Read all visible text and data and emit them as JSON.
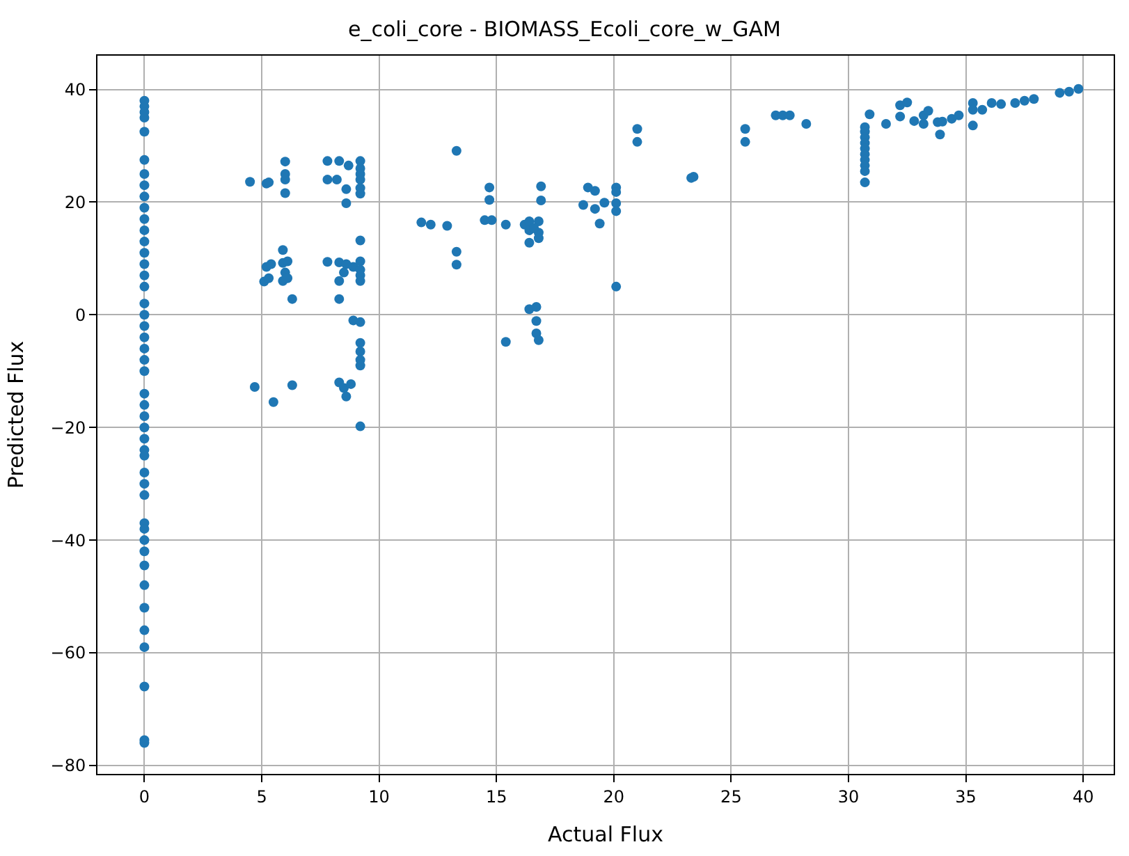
{
  "chart_data": {
    "type": "scatter",
    "title": "e_coli_core - BIOMASS_Ecoli_core_w_GAM",
    "xlabel": "Actual Flux",
    "ylabel": "Predicted Flux",
    "xlim": [
      -2,
      41.3
    ],
    "ylim": [
      -81.5,
      46
    ],
    "xticks": [
      0,
      5,
      10,
      15,
      20,
      25,
      30,
      35,
      40
    ],
    "yticks": [
      -80,
      -60,
      -40,
      -20,
      0,
      20,
      40
    ],
    "grid": true,
    "marker": "circle",
    "series": [
      {
        "color": "#1f77b4",
        "x": [
          0,
          0,
          0,
          0,
          0,
          0,
          0,
          0,
          0,
          0,
          0,
          0,
          0,
          0,
          0,
          0,
          0,
          0,
          0,
          0,
          0,
          0,
          0,
          0,
          0,
          0,
          0,
          0,
          0,
          0,
          0,
          0,
          0,
          0,
          0,
          0,
          0,
          0,
          0,
          0,
          0,
          0,
          0,
          0,
          0,
          0,
          4.5,
          5.2,
          5.3,
          6,
          6,
          6,
          6,
          5.9,
          5.2,
          5.4,
          5.9,
          6.1,
          6,
          5.1,
          5.3,
          5.9,
          6.1,
          6.3,
          4.7,
          5.5,
          6.3,
          7.8,
          8.3,
          7.8,
          8.2,
          8.7,
          9.2,
          9.2,
          9.2,
          9.2,
          9.2,
          9.2,
          8.6,
          8.6,
          9.2,
          7.8,
          8.3,
          8.6,
          8.9,
          9.2,
          9.2,
          9.2,
          8.5,
          9.2,
          8.3,
          8.3,
          8.9,
          9.2,
          9.2,
          9.2,
          9.2,
          9.2,
          8.3,
          8.5,
          8.8,
          8.6,
          9.2,
          13.3,
          11.8,
          12.2,
          12.9,
          13.3,
          13.3,
          14.5,
          14.8,
          15.4,
          14.7,
          14.7,
          16.9,
          16.9,
          16.2,
          16.4,
          16.4,
          16.4,
          16.8,
          16.8,
          16.8,
          16.6,
          16.4,
          16.7,
          16.7,
          16.7,
          16.8,
          15.4,
          18.9,
          19.2,
          18.7,
          19.2,
          19.4,
          19.6,
          20.1,
          20.1,
          20.1,
          20.1,
          20.1,
          21,
          21,
          23.3,
          23.4,
          25.6,
          25.6,
          26.9,
          27.2,
          27.5,
          28.2,
          30.7,
          30.7,
          30.7,
          30.7,
          30.7,
          30.7,
          30.7,
          30.7,
          30.7,
          30.7,
          30.9,
          31.6,
          32.2,
          32.2,
          32.5,
          32.8,
          33.2,
          33.4,
          33.2,
          33.8,
          33.9,
          34,
          34.4,
          34.7,
          35.3,
          35.3,
          35.3,
          35.7,
          36.1,
          36.5,
          37.1,
          37.5,
          37.9,
          39,
          39.4,
          39.8
        ],
        "values": [
          38,
          37,
          36,
          35,
          32.5,
          27.5,
          25,
          23,
          21,
          19,
          17,
          15,
          13,
          11,
          9,
          7,
          5,
          2,
          0,
          -2,
          -4,
          -6,
          -8,
          -10,
          -14,
          -16,
          -18,
          -20,
          -22,
          -24,
          -25,
          -28,
          -30,
          -32,
          -37,
          -38,
          -40,
          -42,
          -44.5,
          -48,
          -52,
          -56,
          -59,
          -66,
          -75.5,
          -76,
          23.6,
          23.3,
          23.5,
          27.2,
          25,
          24,
          21.6,
          11.5,
          8.5,
          9,
          9.2,
          9.5,
          7.5,
          5.9,
          6.5,
          6,
          6.5,
          2.8,
          -12.8,
          -15.5,
          -12.5,
          27.3,
          27.3,
          24,
          24,
          26.5,
          27.3,
          26,
          25,
          24,
          22.5,
          21.5,
          22.3,
          19.8,
          13.2,
          9.4,
          9.3,
          9,
          8.5,
          9.5,
          8,
          7,
          7.5,
          6,
          6,
          2.8,
          -1,
          -1.3,
          -5,
          -6.5,
          -8,
          -9,
          -12,
          -13,
          -12.3,
          -14.5,
          -19.8,
          29.1,
          16.4,
          16,
          15.8,
          11.2,
          8.9,
          16.8,
          16.8,
          16,
          22.6,
          20.4,
          22.8,
          20.3,
          16,
          16.6,
          15,
          12.8,
          16.6,
          14.6,
          13.6,
          15.4,
          1,
          1.4,
          -1.1,
          -3.3,
          -4.5,
          -4.8,
          22.6,
          22,
          19.5,
          18.8,
          16.2,
          19.9,
          22.6,
          21.8,
          19.8,
          18.4,
          5,
          33,
          30.7,
          24.3,
          24.5,
          33,
          30.7,
          35.4,
          35.4,
          35.4,
          33.9,
          33.3,
          32.5,
          31.5,
          30.5,
          29.5,
          28.5,
          27.5,
          26.5,
          25.5,
          23.5,
          35.6,
          33.9,
          37.2,
          35.2,
          37.7,
          34.4,
          35.4,
          36.2,
          33.9,
          34.2,
          32,
          34.3,
          34.8,
          35.4,
          37.6,
          36.4,
          33.6,
          36.4,
          37.6,
          37.4,
          37.6,
          38,
          38.3,
          39.4,
          39.6,
          40.1
        ]
      }
    ]
  }
}
